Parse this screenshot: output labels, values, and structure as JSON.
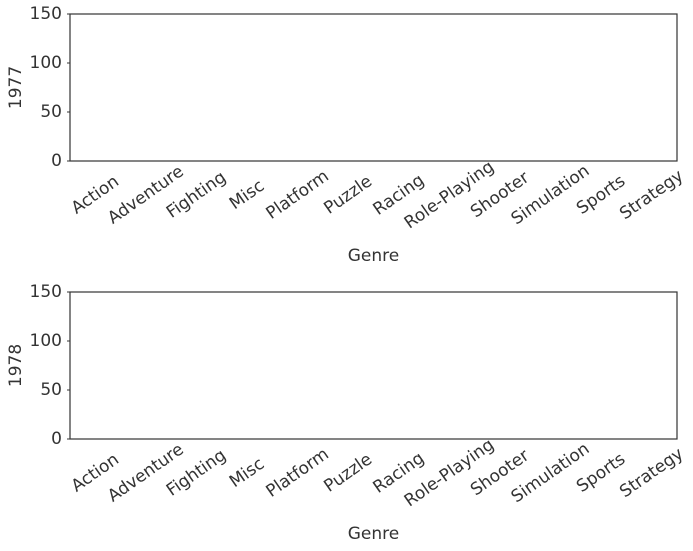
{
  "chart_data": [
    {
      "type": "bar",
      "xlabel": "Genre",
      "ylabel": "1977",
      "categories": [
        "Action",
        "Adventure",
        "Fighting",
        "Misc",
        "Platform",
        "Puzzle",
        "Racing",
        "Role-Playing",
        "Shooter",
        "Simulation",
        "Sports",
        "Strategy"
      ],
      "values": [
        0,
        0,
        0,
        0,
        0,
        0,
        0,
        0,
        0,
        0,
        0,
        0
      ],
      "color": "#4c72b0",
      "ylim": [
        0,
        150
      ],
      "yticks": [
        0,
        50,
        100,
        150
      ],
      "grid": false
    },
    {
      "type": "bar",
      "xlabel": "Genre",
      "ylabel": "1978",
      "categories": [
        "Action",
        "Adventure",
        "Fighting",
        "Misc",
        "Platform",
        "Puzzle",
        "Racing",
        "Role-Playing",
        "Shooter",
        "Simulation",
        "Sports",
        "Strategy"
      ],
      "values": [
        0,
        0,
        0,
        0,
        0,
        0,
        0,
        0,
        0,
        0,
        0,
        0
      ],
      "color": "#4c72b0",
      "ylim": [
        0,
        150
      ],
      "yticks": [
        0,
        50,
        100,
        150
      ],
      "grid": false
    }
  ]
}
